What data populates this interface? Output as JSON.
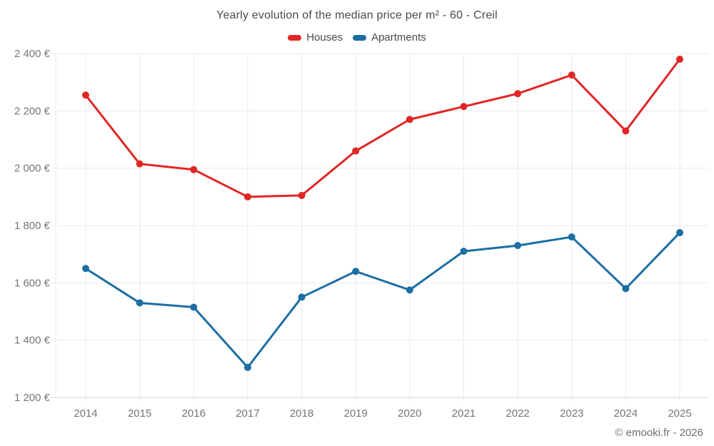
{
  "title": "Yearly evolution of the median price per m² - 60 - Creil",
  "watermark": "© emooki.fr - 2026",
  "legend": {
    "items": [
      {
        "label": "Houses",
        "color": "#e12626"
      },
      {
        "label": "Apartments",
        "color": "#1c6ea4"
      }
    ]
  },
  "colors": {
    "grid": "#e9e9e9",
    "axis_line": "#d6d6d6",
    "axis_labels": "#757575",
    "title_text": "#4a4a4a",
    "watermark_text": "#6e6e6e"
  },
  "chart_data": {
    "type": "line",
    "title": "Yearly evolution of the median price per m² - 60 - Creil",
    "categories": [
      "2014",
      "2015",
      "2016",
      "2017",
      "2018",
      "2019",
      "2020",
      "2021",
      "2022",
      "2023",
      "2024",
      "2025"
    ],
    "series": [
      {
        "name": "Houses",
        "color": "#e12626",
        "values": [
          2255,
          2015,
          1995,
          1900,
          1905,
          2060,
          2170,
          2215,
          2260,
          2325,
          2130,
          2380
        ]
      },
      {
        "name": "Apartments",
        "color": "#1c6ea4",
        "values": [
          1650,
          1530,
          1515,
          1305,
          1550,
          1640,
          1575,
          1710,
          1730,
          1760,
          1580,
          1775
        ]
      }
    ],
    "ylim": [
      1200,
      2400
    ],
    "yticks": [
      1200,
      1400,
      1600,
      1800,
      2000,
      2200,
      2400
    ],
    "ytick_labels": [
      "1 200 €",
      "1 400 €",
      "1 600 €",
      "1 800 €",
      "2 000 €",
      "2 200 €",
      "2 400 €"
    ],
    "xlabel": "",
    "ylabel": "",
    "grid": true,
    "legend_position": "top"
  }
}
